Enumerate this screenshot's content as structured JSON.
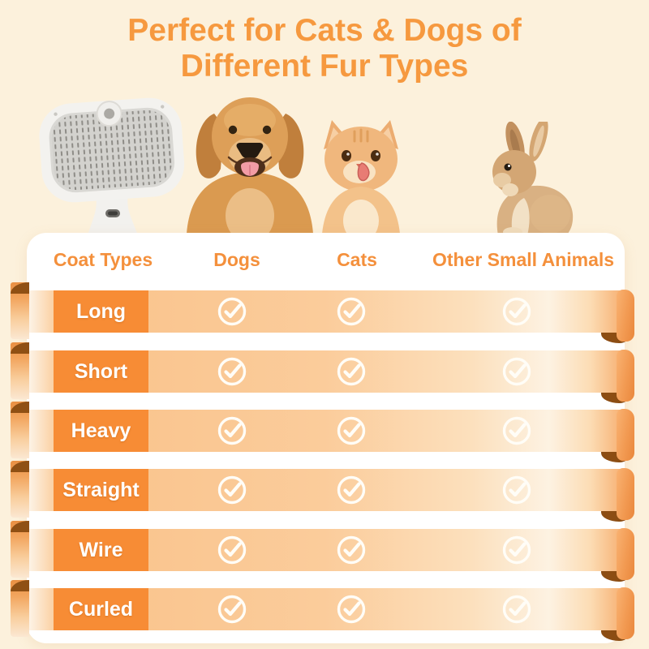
{
  "title": {
    "line1": "Perfect for Cats & Dogs of",
    "line2": "Different Fur Types"
  },
  "hero": {
    "images": [
      {
        "name": "self-cleaning-grooming-brush"
      },
      {
        "name": "golden-retriever-dog"
      },
      {
        "name": "orange-tabby-kitten"
      },
      {
        "name": "brown-rabbit"
      }
    ]
  },
  "table": {
    "headers": [
      "Coat Types",
      "Dogs",
      "Cats",
      "Other Small Animals"
    ],
    "rows": [
      {
        "label": "Long",
        "checks": [
          true,
          true,
          true
        ]
      },
      {
        "label": "Short",
        "checks": [
          true,
          true,
          true
        ]
      },
      {
        "label": "Heavy",
        "checks": [
          true,
          true,
          true
        ]
      },
      {
        "label": "Straight",
        "checks": [
          true,
          true,
          true
        ]
      },
      {
        "label": "Wire",
        "checks": [
          true,
          true,
          true
        ]
      },
      {
        "label": "Curled",
        "checks": [
          true,
          true,
          true
        ]
      }
    ]
  },
  "chart_data": {
    "type": "table",
    "title": "Perfect for Cats & Dogs of Different Fur Types",
    "columns": [
      "Coat Types",
      "Dogs",
      "Cats",
      "Other Small Animals"
    ],
    "rows": [
      [
        "Long",
        "✓",
        "✓",
        "✓"
      ],
      [
        "Short",
        "✓",
        "✓",
        "✓"
      ],
      [
        "Heavy",
        "✓",
        "✓",
        "✓"
      ],
      [
        "Straight",
        "✓",
        "✓",
        "✓"
      ],
      [
        "Wire",
        "✓",
        "✓",
        "✓"
      ],
      [
        "Curled",
        "✓",
        "✓",
        "✓"
      ]
    ]
  },
  "icons": {
    "check": "circled-checkmark"
  },
  "colors": {
    "background": "#FCF1DC",
    "title_text": "#F6993F",
    "header_text": "#F4903C",
    "label_cell": "#F78C35",
    "ribbon_light": "#FBCC9B",
    "ribbon_fold_dark": "#8C4D13",
    "check": "#FFFDF7",
    "panel": "#FFFFFF"
  }
}
